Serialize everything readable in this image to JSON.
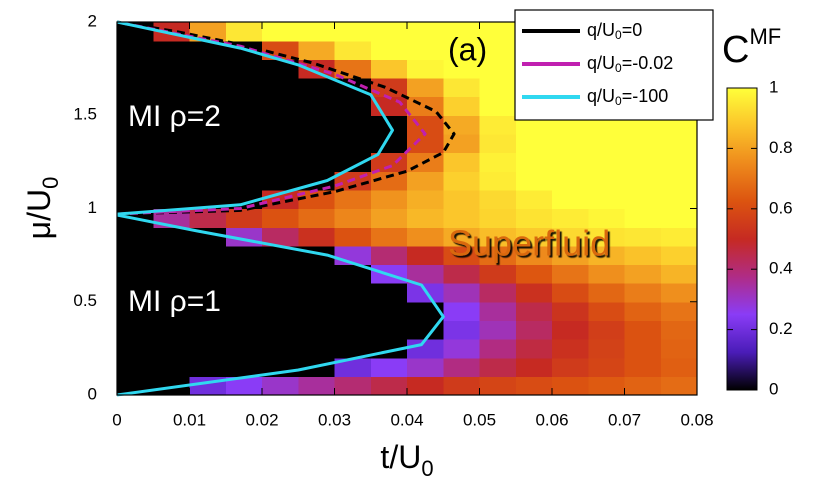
{
  "chart_data": {
    "type": "heatmap",
    "annotations": {
      "panel": "(a)",
      "mi2": "MI ρ=2",
      "mi1": "MI ρ=1",
      "sf": "Superfluid"
    },
    "xlabel": {
      "text": "t/U",
      "sub": "0"
    },
    "ylabel": {
      "text": "μ/U",
      "sub": "0"
    },
    "xlim": [
      0,
      0.08
    ],
    "ylim": [
      0,
      2
    ],
    "xticks": [
      0,
      0.01,
      0.02,
      0.03,
      0.04,
      0.05,
      0.06,
      0.07,
      0.08
    ],
    "yticks": [
      0,
      0.5,
      1,
      1.5,
      2
    ],
    "x_bins": [
      0,
      0.005,
      0.01,
      0.015,
      0.02,
      0.025,
      0.03,
      0.035,
      0.04,
      0.045,
      0.05,
      0.055,
      0.06,
      0.065,
      0.07,
      0.075,
      0.08
    ],
    "y_bins": [
      0,
      0.1,
      0.2,
      0.3,
      0.4,
      0.5,
      0.6,
      0.7,
      0.8,
      0.9,
      1,
      1.1,
      1.2,
      1.3,
      1.4,
      1.5,
      1.6,
      1.7,
      1.8,
      1.9,
      2
    ],
    "z": [
      [
        0,
        0,
        0.2,
        0.25,
        0.3,
        0.35,
        0.4,
        0.45,
        0.5,
        0.55,
        0.58,
        0.6,
        0.62,
        0.64,
        0.66,
        0.68
      ],
      [
        0,
        0,
        0,
        0,
        0,
        0,
        0.2,
        0.25,
        0.3,
        0.38,
        0.45,
        0.5,
        0.55,
        0.58,
        0.62,
        0.65
      ],
      [
        0,
        0,
        0,
        0,
        0,
        0,
        0,
        0,
        0.2,
        0.28,
        0.38,
        0.46,
        0.52,
        0.57,
        0.62,
        0.66
      ],
      [
        0,
        0,
        0,
        0,
        0,
        0,
        0,
        0,
        0,
        0.22,
        0.32,
        0.42,
        0.5,
        0.56,
        0.62,
        0.67
      ],
      [
        0,
        0,
        0,
        0,
        0,
        0,
        0,
        0,
        0,
        0.25,
        0.35,
        0.45,
        0.53,
        0.6,
        0.66,
        0.7
      ],
      [
        0,
        0,
        0,
        0,
        0,
        0,
        0,
        0,
        0.22,
        0.32,
        0.42,
        0.52,
        0.6,
        0.67,
        0.72,
        0.76
      ],
      [
        0,
        0,
        0,
        0,
        0,
        0,
        0,
        0.25,
        0.35,
        0.45,
        0.55,
        0.63,
        0.7,
        0.76,
        0.8,
        0.84
      ],
      [
        0,
        0,
        0,
        0,
        0,
        0,
        0.28,
        0.4,
        0.5,
        0.6,
        0.68,
        0.75,
        0.8,
        0.84,
        0.87,
        0.9
      ],
      [
        0,
        0,
        0,
        0.3,
        0.42,
        0.52,
        0.62,
        0.7,
        0.76,
        0.82,
        0.86,
        0.89,
        0.92,
        0.94,
        0.95,
        0.96
      ],
      [
        0,
        0.35,
        0.45,
        0.55,
        0.62,
        0.68,
        0.74,
        0.8,
        0.85,
        0.88,
        0.91,
        0.94,
        0.96,
        0.98,
        1,
        1
      ],
      [
        0,
        0,
        0,
        0,
        0.5,
        0.62,
        0.7,
        0.77,
        0.83,
        0.88,
        0.92,
        0.96,
        1,
        1,
        1,
        1
      ],
      [
        0,
        0,
        0,
        0,
        0,
        0,
        0.55,
        0.68,
        0.8,
        0.9,
        0.96,
        1,
        1,
        1,
        1,
        1
      ],
      [
        0,
        0,
        0,
        0,
        0,
        0,
        0,
        0.55,
        0.72,
        0.88,
        0.97,
        1,
        1,
        1,
        1,
        1
      ],
      [
        0,
        0,
        0,
        0,
        0,
        0,
        0,
        0,
        0.6,
        0.8,
        0.95,
        1,
        1,
        1,
        1,
        1
      ],
      [
        0,
        0,
        0,
        0,
        0,
        0,
        0,
        0,
        0.6,
        0.82,
        0.96,
        1,
        1,
        1,
        1,
        1
      ],
      [
        0,
        0,
        0,
        0,
        0,
        0,
        0,
        0.5,
        0.72,
        0.9,
        1,
        1,
        1,
        1,
        1,
        1
      ],
      [
        0,
        0,
        0,
        0,
        0,
        0,
        0,
        0.55,
        0.8,
        0.95,
        1,
        1,
        1,
        1,
        1,
        1
      ],
      [
        0,
        0,
        0,
        0,
        0,
        0.5,
        0.7,
        0.88,
        0.98,
        1,
        1,
        1,
        1,
        1,
        1,
        1
      ],
      [
        0,
        0,
        0,
        0,
        0.6,
        0.82,
        0.95,
        1,
        1,
        1,
        1,
        1,
        1,
        1,
        1,
        1
      ],
      [
        0,
        0.5,
        0.8,
        0.95,
        1,
        1,
        1,
        1,
        1,
        1,
        1,
        1,
        1,
        1,
        1,
        1
      ]
    ],
    "colormap": [
      "#000000",
      "#4a1cb8",
      "#8a3cf6",
      "#b02c86",
      "#c62a22",
      "#dc5410",
      "#ee8a1c",
      "#fbc42a",
      "#ffff3a"
    ],
    "colorbar": {
      "label": "C",
      "label_sup": "MF",
      "lim": [
        0,
        1
      ],
      "ticks": [
        0,
        0.2,
        0.4,
        0.6,
        0.8,
        1
      ]
    },
    "series": [
      {
        "name": "q/U",
        "name_sub": "0",
        "name_rest": "=0",
        "color": "#000000",
        "dash": true,
        "x": [
          0,
          0.017,
          0.03,
          0.04,
          0.045,
          0.0465,
          0.044,
          0.037,
          0.027,
          0.017,
          0.008,
          0
        ],
        "y": [
          0.97,
          0.99,
          1.09,
          1.2,
          1.3,
          1.4,
          1.52,
          1.65,
          1.78,
          1.88,
          1.95,
          2
        ]
      },
      {
        "name": "q/U",
        "name_sub": "0",
        "name_rest": "=-0.02",
        "color": "#c020b0",
        "dash": true,
        "x": [
          0,
          0.017,
          0.03,
          0.038,
          0.0425,
          0.039,
          0.03,
          0.017,
          0
        ],
        "y": [
          0.97,
          1,
          1.12,
          1.23,
          1.4,
          1.57,
          1.72,
          1.87,
          2
        ]
      },
      {
        "name": "q/U",
        "name_sub": "0",
        "name_rest": "=-100",
        "color": "#30d8f0",
        "dash": false,
        "x": [
          0,
          0.025,
          0.042,
          0.045,
          0.042,
          0.029,
          0.011,
          0,
          null,
          0,
          0.017,
          0.029,
          0.036,
          0.038,
          0.035,
          0.025,
          0.017,
          0
        ],
        "y": [
          0,
          0.134,
          0.27,
          0.42,
          0.59,
          0.75,
          0.88,
          0.965,
          null,
          0.97,
          1.02,
          1.15,
          1.29,
          1.42,
          1.61,
          1.77,
          1.86,
          2
        ]
      }
    ]
  }
}
